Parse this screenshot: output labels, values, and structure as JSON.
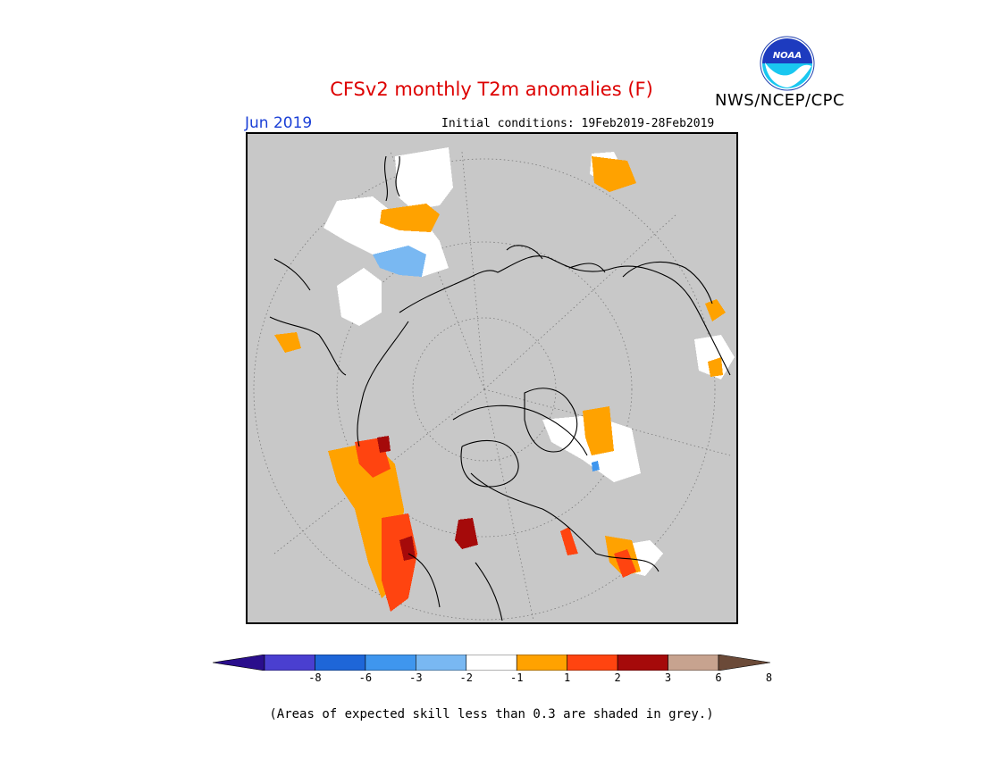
{
  "header": {
    "title": "CFSv2 monthly T2m anomalies (F)",
    "agency": "NWS/NCEP/CPC",
    "month": "Jun 2019",
    "initial_conditions": "Initial conditions: 19Feb2019-28Feb2019",
    "logo_text": "NOAA"
  },
  "colors": {
    "title": "#dd0000",
    "month": "#1a3fd6",
    "land_grey": "#c8c8c8",
    "coast": "#000000",
    "grid": "#777777"
  },
  "legend": {
    "bins": [
      {
        "color": "#2a0e8c",
        "shape": "arrow-left"
      },
      {
        "color": "#4a3fd0"
      },
      {
        "color": "#1e66d8"
      },
      {
        "color": "#3f96ee"
      },
      {
        "color": "#79b8f2"
      },
      {
        "color": "#ffffff"
      },
      {
        "color": "#ffa200"
      },
      {
        "color": "#ff4410"
      },
      {
        "color": "#a50a0a"
      },
      {
        "color": "#c7a38f"
      },
      {
        "color": "#6b4a38",
        "shape": "arrow-right"
      }
    ],
    "tick_labels": [
      "-8",
      "-6",
      "-3",
      "-2",
      "-1",
      "1",
      "2",
      "3",
      "6",
      "8"
    ]
  },
  "footnote": "(Areas of expected skill less than 0.3 are shaded in grey.)"
}
